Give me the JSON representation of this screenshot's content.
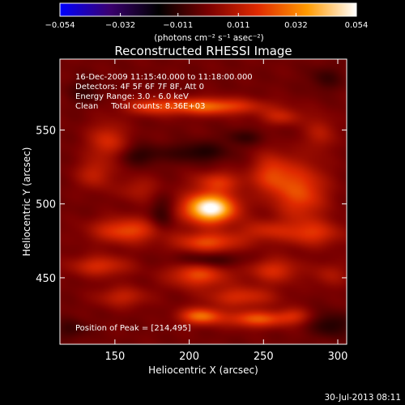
{
  "colorbar": {
    "ticks": [
      -0.054,
      -0.032,
      -0.011,
      0.011,
      0.032,
      0.054
    ],
    "tick_labels": [
      "−0.054",
      "−0.032",
      "−0.011",
      "0.011",
      "0.032",
      "0.054"
    ],
    "units_label": "(photons cm⁻² s⁻¹ asec⁻²)",
    "colors": [
      "#0000ff",
      "#3a0070",
      "#000000",
      "#7a0000",
      "#e02a00",
      "#ff9a00",
      "#ffffff"
    ]
  },
  "title": "Reconstructed RHESSI Image",
  "annotations": [
    "16-Dec-2009 11:15:40.000 to 11:18:00.000",
    "Detectors: 4F 5F 6F 7F 8F, Att 0",
    "Energy Range: 3.0 - 6.0 keV",
    "Clean     Total counts: 8.36E+03"
  ],
  "peak_label": "Position of Peak = [214,495]",
  "timestamp": "30-Jul-2013 08:11",
  "chart_data": {
    "type": "heatmap",
    "title": "Reconstructed RHESSI Image",
    "xlabel": "Heliocentric X (arcsec)",
    "ylabel": "Heliocentric Y (arcsec)",
    "xlim": [
      113,
      306
    ],
    "ylim": [
      405,
      598
    ],
    "x_ticks": [
      150,
      200,
      250,
      300
    ],
    "y_ticks": [
      450,
      500,
      550
    ],
    "value_range": [
      -0.054,
      0.054
    ],
    "peak": [
      214,
      495
    ],
    "blobs": [
      {
        "x": 214,
        "y": 497,
        "sx": 12,
        "sy": 7,
        "v": 0.058
      },
      {
        "x": 220,
        "y": 515,
        "sx": 12,
        "sy": 5,
        "v": 0.018
      },
      {
        "x": 213,
        "y": 474,
        "sx": 16,
        "sy": 5,
        "v": 0.024
      },
      {
        "x": 210,
        "y": 566,
        "sx": 26,
        "sy": 4,
        "v": 0.03
      },
      {
        "x": 172,
        "y": 566,
        "sx": 10,
        "sy": 4,
        "v": 0.012
      },
      {
        "x": 262,
        "y": 559,
        "sx": 10,
        "sy": 4,
        "v": 0.014
      },
      {
        "x": 145,
        "y": 542,
        "sx": 9,
        "sy": 9,
        "v": 0.018
      },
      {
        "x": 136,
        "y": 520,
        "sx": 8,
        "sy": 7,
        "v": 0.014
      },
      {
        "x": 255,
        "y": 520,
        "sx": 9,
        "sy": 10,
        "v": 0.02
      },
      {
        "x": 275,
        "y": 508,
        "sx": 12,
        "sy": 14,
        "v": 0.024
      },
      {
        "x": 288,
        "y": 548,
        "sx": 7,
        "sy": 8,
        "v": 0.012
      },
      {
        "x": 166,
        "y": 510,
        "sx": 10,
        "sy": 6,
        "v": 0.01
      },
      {
        "x": 158,
        "y": 482,
        "sx": 16,
        "sy": 6,
        "v": 0.024
      },
      {
        "x": 250,
        "y": 482,
        "sx": 12,
        "sy": 5,
        "v": 0.014
      },
      {
        "x": 283,
        "y": 480,
        "sx": 14,
        "sy": 6,
        "v": 0.018
      },
      {
        "x": 140,
        "y": 458,
        "sx": 14,
        "sy": 5,
        "v": 0.018
      },
      {
        "x": 206,
        "y": 452,
        "sx": 14,
        "sy": 6,
        "v": 0.024
      },
      {
        "x": 257,
        "y": 455,
        "sx": 12,
        "sy": 6,
        "v": 0.018
      },
      {
        "x": 295,
        "y": 452,
        "sx": 8,
        "sy": 6,
        "v": 0.01
      },
      {
        "x": 155,
        "y": 437,
        "sx": 12,
        "sy": 5,
        "v": 0.014
      },
      {
        "x": 235,
        "y": 437,
        "sx": 16,
        "sy": 5,
        "v": 0.018
      },
      {
        "x": 208,
        "y": 424,
        "sx": 10,
        "sy": 4,
        "v": 0.03
      },
      {
        "x": 245,
        "y": 422,
        "sx": 14,
        "sy": 4,
        "v": 0.026
      },
      {
        "x": 270,
        "y": 424,
        "sx": 8,
        "sy": 4,
        "v": 0.014
      },
      {
        "x": 207,
        "y": 535,
        "sx": 14,
        "sy": 5,
        "v": -0.012
      },
      {
        "x": 167,
        "y": 533,
        "sx": 12,
        "sy": 5,
        "v": -0.01
      },
      {
        "x": 237,
        "y": 545,
        "sx": 10,
        "sy": 4,
        "v": -0.008
      },
      {
        "x": 213,
        "y": 462,
        "sx": 16,
        "sy": 4,
        "v": -0.012
      },
      {
        "x": 182,
        "y": 492,
        "sx": 6,
        "sy": 9,
        "v": -0.01
      },
      {
        "x": 296,
        "y": 418,
        "sx": 10,
        "sy": 6,
        "v": -0.012
      },
      {
        "x": 120,
        "y": 415,
        "sx": 8,
        "sy": 5,
        "v": -0.008
      },
      {
        "x": 130,
        "y": 576,
        "sx": 8,
        "sy": 6,
        "v": -0.008
      },
      {
        "x": 292,
        "y": 585,
        "sx": 8,
        "sy": 6,
        "v": -0.008
      }
    ]
  }
}
